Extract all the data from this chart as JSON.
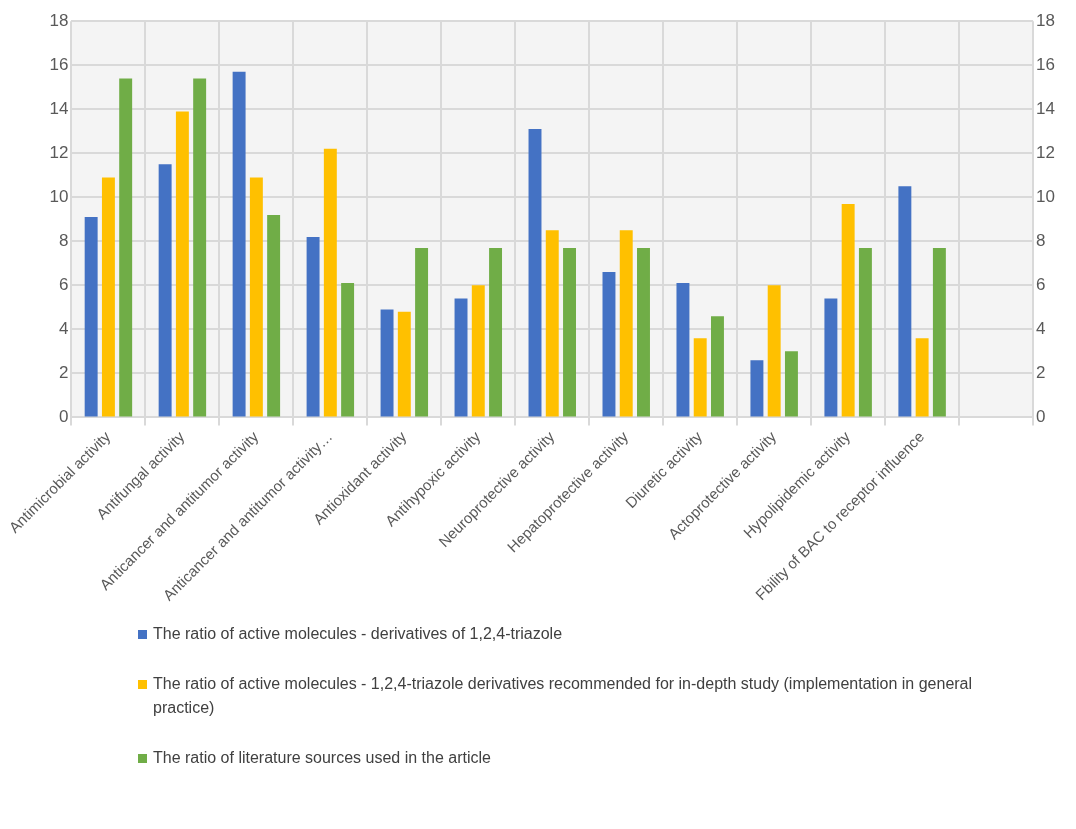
{
  "chart_data": {
    "type": "bar",
    "categories": [
      "Antimicrobial activity",
      "Antifungal activity",
      "Anticancer and antitumor activity",
      "Anticancer and antitumor activity…",
      "Antioxidant activity",
      "Antihypoxic activity",
      "Neuroprotective activity",
      "Hepatoprotective activity",
      "Diuretic activity",
      "Actoprotective activity",
      "Hypolipidemic activity",
      "Fbility of BAC to receptor influence",
      null
    ],
    "series": [
      {
        "name": "The ratio of active molecules - derivatives of 1,2,4-triazole",
        "color": "#4472c4",
        "values": [
          9.1,
          11.5,
          15.7,
          8.2,
          4.9,
          5.4,
          13.1,
          6.6,
          6.1,
          2.6,
          5.4,
          10.5,
          null
        ]
      },
      {
        "name": "The ratio of active molecules - 1,2,4-triazole derivatives recommended for in-depth study (implementation in general practice)",
        "color": "#ffc000",
        "values": [
          10.9,
          13.9,
          10.9,
          12.2,
          4.8,
          6.0,
          8.5,
          8.5,
          3.6,
          6.0,
          9.7,
          3.6,
          null
        ]
      },
      {
        "name": "The ratio of literature sources used in the article",
        "color": "#70ad47",
        "values": [
          15.4,
          15.4,
          9.2,
          6.1,
          7.7,
          7.7,
          7.7,
          7.7,
          4.6,
          3.0,
          7.7,
          7.7,
          null
        ]
      }
    ],
    "ylim": [
      0,
      18
    ],
    "yticks": [
      0,
      2,
      4,
      6,
      8,
      10,
      12,
      14,
      16,
      18
    ],
    "y2lim": [
      0,
      18
    ],
    "y2ticks": [
      0,
      2,
      4,
      6,
      8,
      10,
      12,
      14,
      16,
      18
    ],
    "grid": true,
    "legend": "bottom"
  }
}
